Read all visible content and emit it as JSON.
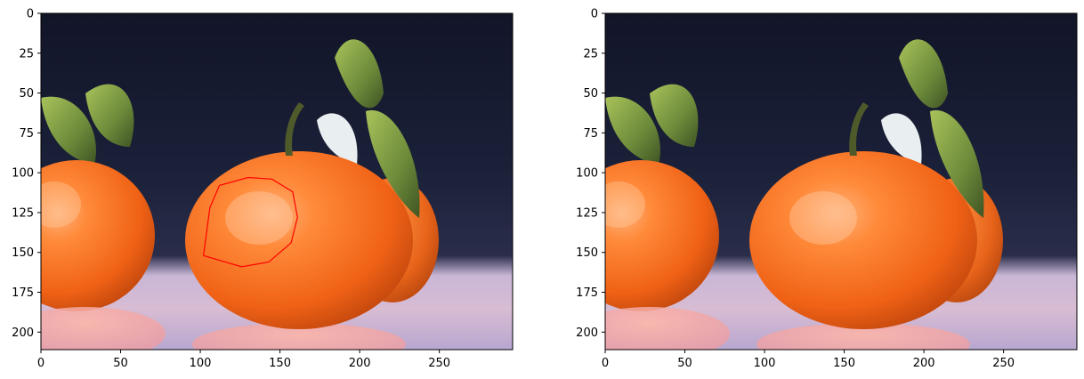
{
  "figure": {
    "panels": [
      {
        "id": "left",
        "x_ticks": [
          "0",
          "50",
          "100",
          "150",
          "200",
          "250"
        ],
        "y_ticks": [
          "0",
          "25",
          "50",
          "75",
          "100",
          "125",
          "150",
          "175",
          "200"
        ],
        "overlay": {
          "shape": "polygon",
          "color": "#ff0000",
          "points": [
            [
              102,
              152
            ],
            [
              106,
              122
            ],
            [
              112,
              108
            ],
            [
              130,
              103
            ],
            [
              145,
              104
            ],
            [
              158,
              112
            ],
            [
              161,
              128
            ],
            [
              157,
              144
            ],
            [
              143,
              156
            ],
            [
              126,
              159
            ]
          ]
        }
      },
      {
        "id": "right",
        "x_ticks": [
          "0",
          "50",
          "100",
          "150",
          "200",
          "250"
        ],
        "y_ticks": [
          "0",
          "25",
          "50",
          "75",
          "100",
          "125",
          "150",
          "175",
          "200"
        ]
      }
    ],
    "image_extent": {
      "width": 296,
      "height": 211
    },
    "image_content": "orange-tangerines-photo"
  }
}
